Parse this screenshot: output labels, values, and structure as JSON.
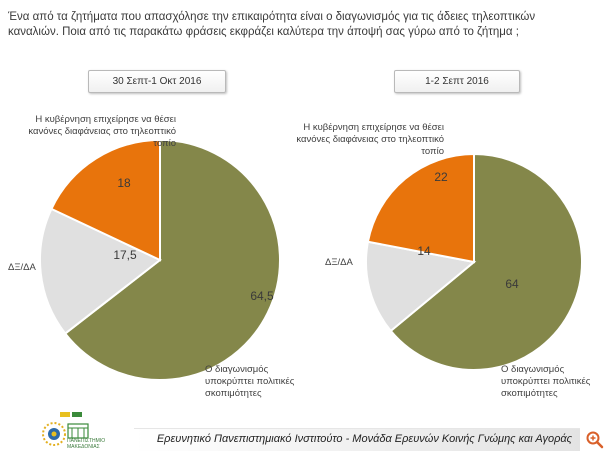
{
  "question": "Ένα από τα ζητήματα που απασχόλησε την επικαιρότητα είναι ο διαγωνισμός για τις άδειες τηλεοπτικών καναλιών. Ποια από τις παρακάτω φράσεις εκφράζει καλύτερα την άποψή σας γύρω από το ζήτημα ;",
  "labels": {
    "government": "Η κυβέρνηση επιχείρησε να θέσει κανόνες διαφάνειας στο τηλεοπτικό τοπίο",
    "dk": "ΔΞ/ΔΑ",
    "contest": "Ο διαγωνισμός υποκρύπτει πολιτικές σκοπιμότητες"
  },
  "chart_data": [
    {
      "type": "pie",
      "title": "30 Σεπτ-1 Οκτ 2016",
      "categories": [
        "Ο διαγωνισμός υποκρύπτει πολιτικές σκοπιμότητες",
        "ΔΞ/ΔΑ",
        "Η κυβέρνηση επιχείρησε να θέσει κανόνες διαφάνειας στο τηλεοπτικό τοπίο"
      ],
      "values": [
        64.5,
        17.5,
        18
      ],
      "value_labels": [
        "64,5",
        "17,5",
        "18"
      ],
      "colors": [
        "#84874a",
        "#e0e0e0",
        "#e8740c"
      ]
    },
    {
      "type": "pie",
      "title": "1-2 Σεπτ 2016",
      "categories": [
        "Ο διαγωνισμός υποκρύπτει πολιτικές σκοπιμότητες",
        "ΔΞ/ΔΑ",
        "Η κυβέρνηση επιχείρησε να θέσει κανόνες διαφάνειας στο τηλεοπτικό τοπίο"
      ],
      "values": [
        64,
        14,
        22
      ],
      "value_labels": [
        "64",
        "14",
        "22"
      ],
      "colors": [
        "#84874a",
        "#e0e0e0",
        "#e8740c"
      ]
    }
  ],
  "footer": {
    "text": "Ερευνητικό Πανεπιστημιακό Ινστιτούτο - Μονάδα Ερευνών Κοινής Γνώμης και Αγοράς",
    "logo_text": "ΠΑΝΕΠΙΣΤΗΜΙΟ ΜΑΚΕΔΟΝΙΑΣ"
  },
  "icons": [
    "university-logo-icon",
    "zoom-icon"
  ]
}
